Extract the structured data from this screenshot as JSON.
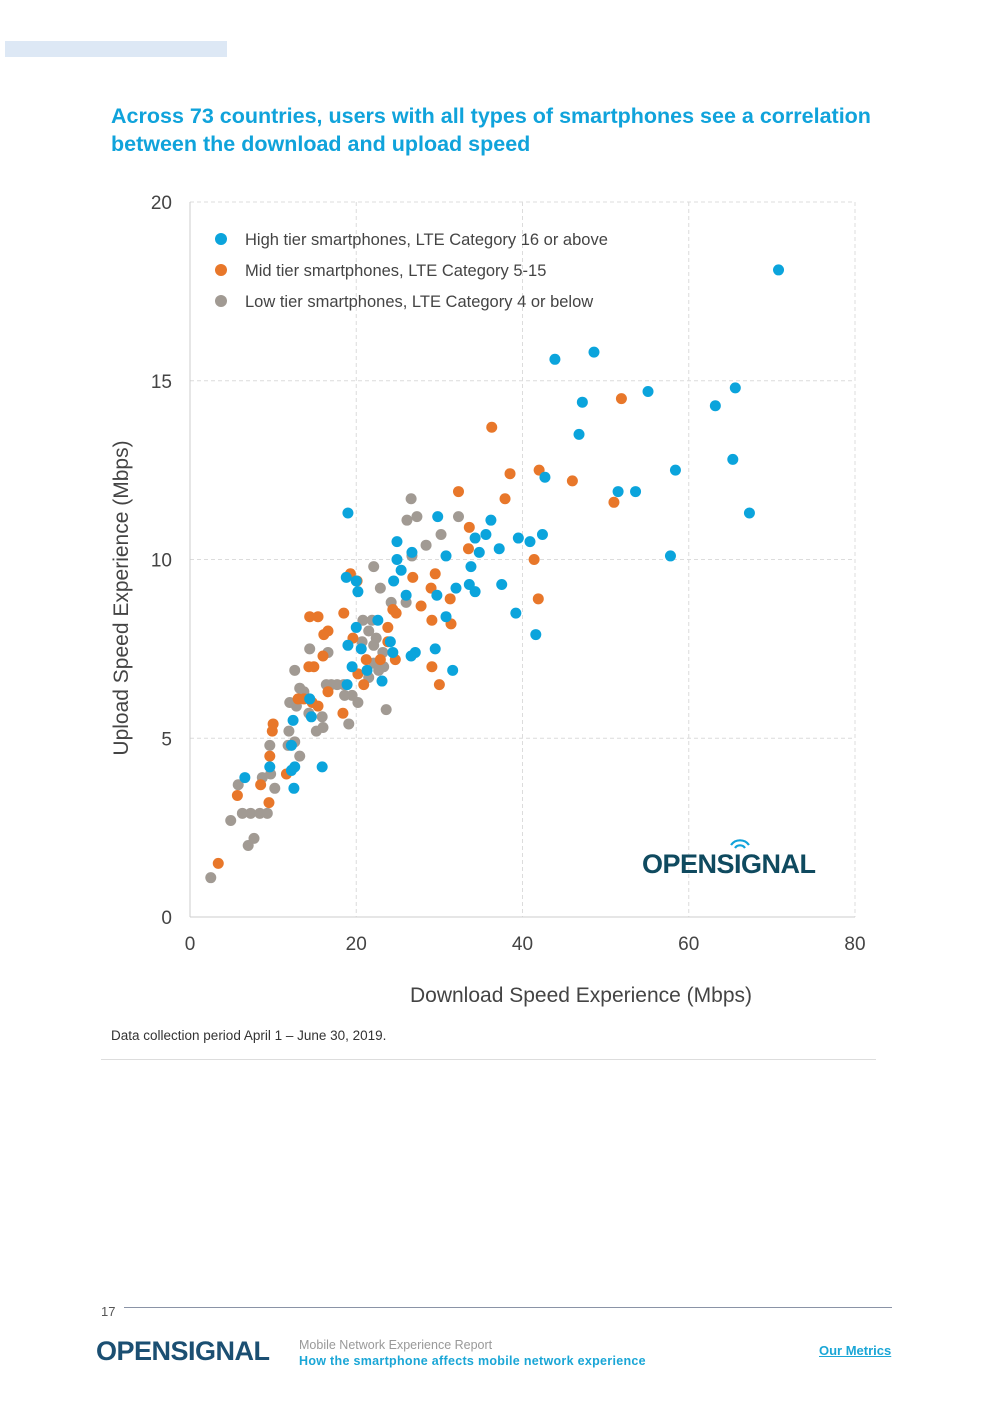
{
  "page": {
    "title": "Across 73 countries, users with all types of smartphones see a correlation between the download and upload speed",
    "note": "Data collection period April 1 – June 30, 2019.",
    "page_number": "17",
    "footer": {
      "logo_text": "OPENSIGNAL",
      "report_name": "Mobile Network Experience Report",
      "report_subtitle": "How the smartphone affects mobile network experience",
      "link": "Our Metrics"
    },
    "chart_logo_text": "OPENSIGNAL"
  },
  "colors": {
    "title": "#10a3db",
    "high": "#0ba4dc",
    "mid": "#e8772a",
    "low": "#a19a93",
    "logo": "#0f4a5f"
  },
  "chart_data": {
    "type": "scatter",
    "xlabel": "Download Speed Experience (Mbps)",
    "ylabel": "Upload Speed Experience (Mbps)",
    "xlim": [
      0,
      80
    ],
    "ylim": [
      0,
      20
    ],
    "xticks": [
      "0",
      "20",
      "40",
      "60",
      "80"
    ],
    "yticks": [
      "0",
      "5",
      "10",
      "15",
      "20"
    ],
    "grid": true,
    "legend_position": "top-left",
    "series": [
      {
        "name": "High tier smartphones, LTE Category 16 or above",
        "color": "#0ba4dc",
        "points": [
          [
            70.8,
            18.1
          ],
          [
            48.6,
            15.8
          ],
          [
            43.9,
            15.6
          ],
          [
            55.1,
            14.7
          ],
          [
            65.6,
            14.8
          ],
          [
            47.2,
            14.4
          ],
          [
            63.2,
            14.3
          ],
          [
            46.8,
            13.5
          ],
          [
            58.4,
            12.5
          ],
          [
            65.3,
            12.8
          ],
          [
            42.7,
            12.3
          ],
          [
            51.5,
            11.9
          ],
          [
            53.6,
            11.9
          ],
          [
            67.3,
            11.3
          ],
          [
            57.8,
            10.1
          ],
          [
            19.0,
            11.3
          ],
          [
            29.8,
            11.2
          ],
          [
            36.2,
            11.1
          ],
          [
            34.3,
            10.6
          ],
          [
            35.6,
            10.7
          ],
          [
            42.4,
            10.7
          ],
          [
            39.5,
            10.6
          ],
          [
            40.9,
            10.5
          ],
          [
            37.2,
            10.3
          ],
          [
            34.8,
            10.2
          ],
          [
            30.8,
            10.1
          ],
          [
            26.7,
            10.2
          ],
          [
            24.9,
            10.5
          ],
          [
            24.9,
            10.0
          ],
          [
            18.8,
            9.5
          ],
          [
            20.0,
            9.4
          ],
          [
            25.4,
            9.7
          ],
          [
            33.8,
            9.8
          ],
          [
            33.6,
            9.3
          ],
          [
            32.0,
            9.2
          ],
          [
            34.3,
            9.1
          ],
          [
            37.5,
            9.3
          ],
          [
            29.7,
            9.0
          ],
          [
            26.0,
            9.0
          ],
          [
            24.5,
            9.4
          ],
          [
            20.2,
            9.1
          ],
          [
            39.2,
            8.5
          ],
          [
            30.8,
            8.4
          ],
          [
            41.6,
            7.9
          ],
          [
            20.0,
            8.1
          ],
          [
            19.0,
            7.6
          ],
          [
            22.6,
            8.3
          ],
          [
            20.6,
            7.5
          ],
          [
            24.1,
            7.7
          ],
          [
            24.4,
            7.4
          ],
          [
            29.5,
            7.5
          ],
          [
            27.1,
            7.4
          ],
          [
            26.6,
            7.3
          ],
          [
            31.6,
            6.9
          ],
          [
            19.5,
            7.0
          ],
          [
            18.9,
            6.5
          ],
          [
            21.3,
            6.9
          ],
          [
            23.1,
            6.6
          ],
          [
            14.4,
            6.1
          ],
          [
            12.4,
            5.5
          ],
          [
            14.6,
            5.6
          ],
          [
            12.2,
            4.8
          ],
          [
            12.6,
            4.2
          ],
          [
            12.5,
            3.6
          ],
          [
            6.6,
            3.9
          ],
          [
            9.6,
            4.2
          ],
          [
            15.9,
            4.2
          ],
          [
            12.2,
            4.1
          ]
        ]
      },
      {
        "name": "Mid tier smartphones, LTE Category 5-15",
        "color": "#e8772a",
        "points": [
          [
            51.9,
            14.5
          ],
          [
            36.3,
            13.7
          ],
          [
            38.5,
            12.4
          ],
          [
            42.0,
            12.5
          ],
          [
            46.0,
            12.2
          ],
          [
            51.0,
            11.6
          ],
          [
            37.9,
            11.7
          ],
          [
            32.3,
            11.9
          ],
          [
            33.6,
            10.9
          ],
          [
            33.5,
            10.3
          ],
          [
            41.4,
            10.0
          ],
          [
            41.9,
            8.9
          ],
          [
            29.5,
            9.6
          ],
          [
            26.8,
            9.5
          ],
          [
            29.0,
            9.2
          ],
          [
            31.3,
            8.9
          ],
          [
            27.8,
            8.7
          ],
          [
            24.8,
            8.5
          ],
          [
            29.1,
            8.3
          ],
          [
            31.4,
            8.2
          ],
          [
            23.8,
            8.1
          ],
          [
            19.3,
            9.6
          ],
          [
            20.1,
            9.4
          ],
          [
            18.5,
            8.5
          ],
          [
            15.4,
            8.4
          ],
          [
            14.4,
            8.4
          ],
          [
            16.6,
            8.0
          ],
          [
            16.1,
            7.9
          ],
          [
            19.6,
            7.8
          ],
          [
            23.8,
            7.7
          ],
          [
            22.9,
            7.2
          ],
          [
            24.7,
            7.2
          ],
          [
            21.2,
            7.2
          ],
          [
            24.4,
            8.6
          ],
          [
            14.3,
            7.0
          ],
          [
            14.9,
            7.0
          ],
          [
            16.0,
            7.3
          ],
          [
            20.2,
            6.8
          ],
          [
            20.9,
            6.5
          ],
          [
            29.1,
            7.0
          ],
          [
            30.0,
            6.5
          ],
          [
            18.4,
            5.7
          ],
          [
            15.4,
            5.9
          ],
          [
            13.0,
            6.1
          ],
          [
            13.7,
            6.1
          ],
          [
            14.7,
            6.0
          ],
          [
            16.6,
            6.3
          ],
          [
            10.0,
            5.4
          ],
          [
            9.9,
            5.2
          ],
          [
            9.6,
            4.5
          ],
          [
            11.6,
            4.0
          ],
          [
            8.5,
            3.7
          ],
          [
            5.7,
            3.4
          ],
          [
            9.5,
            3.2
          ],
          [
            3.4,
            1.5
          ]
        ]
      },
      {
        "name": "Low tier smartphones, LTE Category 4 or below",
        "color": "#a19a93",
        "points": [
          [
            26.6,
            11.7
          ],
          [
            27.3,
            11.2
          ],
          [
            26.1,
            11.1
          ],
          [
            32.3,
            11.2
          ],
          [
            30.2,
            10.7
          ],
          [
            26.7,
            10.1
          ],
          [
            28.4,
            10.4
          ],
          [
            22.1,
            9.8
          ],
          [
            22.9,
            9.2
          ],
          [
            24.2,
            8.8
          ],
          [
            26.0,
            8.8
          ],
          [
            20.8,
            8.3
          ],
          [
            21.9,
            8.3
          ],
          [
            21.5,
            8.0
          ],
          [
            22.4,
            7.8
          ],
          [
            20.7,
            7.7
          ],
          [
            22.1,
            7.6
          ],
          [
            23.2,
            7.4
          ],
          [
            22.1,
            7.1
          ],
          [
            22.7,
            6.9
          ],
          [
            21.5,
            6.7
          ],
          [
            18.5,
            6.5
          ],
          [
            19.5,
            6.2
          ],
          [
            20.2,
            6.0
          ],
          [
            23.6,
            5.8
          ],
          [
            19.1,
            5.4
          ],
          [
            16.6,
            7.4
          ],
          [
            14.4,
            7.5
          ],
          [
            12.6,
            6.9
          ],
          [
            13.2,
            6.4
          ],
          [
            13.7,
            6.3
          ],
          [
            12.8,
            5.9
          ],
          [
            12.0,
            6.0
          ],
          [
            14.3,
            5.7
          ],
          [
            15.9,
            5.6
          ],
          [
            16.0,
            5.3
          ],
          [
            15.2,
            5.2
          ],
          [
            17.0,
            6.5
          ],
          [
            17.7,
            6.5
          ],
          [
            16.4,
            6.5
          ],
          [
            11.9,
            5.2
          ],
          [
            12.6,
            4.9
          ],
          [
            13.2,
            4.5
          ],
          [
            9.6,
            4.8
          ],
          [
            11.8,
            4.8
          ],
          [
            8.7,
            3.9
          ],
          [
            9.7,
            4.0
          ],
          [
            10.2,
            3.6
          ],
          [
            5.8,
            3.7
          ],
          [
            6.3,
            2.9
          ],
          [
            7.3,
            2.9
          ],
          [
            8.4,
            2.9
          ],
          [
            9.3,
            2.9
          ],
          [
            4.9,
            2.7
          ],
          [
            7.7,
            2.2
          ],
          [
            7.0,
            2.0
          ],
          [
            2.5,
            1.1
          ],
          [
            18.6,
            6.2
          ],
          [
            23.3,
            7.0
          ]
        ]
      }
    ]
  }
}
